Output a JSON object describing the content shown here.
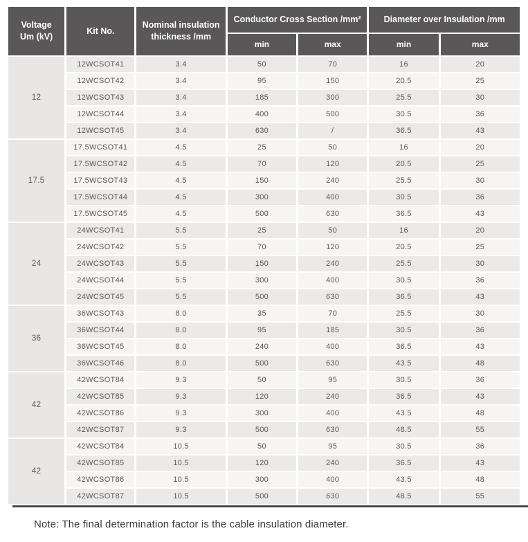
{
  "colors": {
    "header_bg": "#595757",
    "header_text": "#ffffff",
    "row_odd_bg": "#ECEAE9",
    "row_even_bg": "#F6F5F4",
    "voltage_col_bg": "#E9E7E6",
    "body_text": "#595757",
    "bottom_border": "#4B4949",
    "note_text": "#3C3A39"
  },
  "header": {
    "voltage_line1": "Voltage",
    "voltage_line2": "Um (kV)",
    "kit_no": "Kit No.",
    "thickness": "Nominal insulation thickness /mm",
    "conductor_group": "Conductor Cross Section /mm²",
    "diameter_group": "Diameter over Insulation /mm",
    "min": "min",
    "max": "max"
  },
  "table": {
    "groups": [
      {
        "voltage": "12",
        "rows": [
          [
            "12WCSOT41",
            "3.4",
            "50",
            "70",
            "16",
            "20"
          ],
          [
            "12WCSOT42",
            "3.4",
            "95",
            "150",
            "20.5",
            "25"
          ],
          [
            "12WCSOT43",
            "3.4",
            "185",
            "300",
            "25.5",
            "30"
          ],
          [
            "12WCSOT44",
            "3.4",
            "400",
            "500",
            "30.5",
            "36"
          ],
          [
            "12WCSOT45",
            "3.4",
            "630",
            "/",
            "36.5",
            "43"
          ]
        ]
      },
      {
        "voltage": "17.5",
        "rows": [
          [
            "17.5WCSOT41",
            "4.5",
            "25",
            "50",
            "16",
            "20"
          ],
          [
            "17.5WCSOT42",
            "4.5",
            "70",
            "120",
            "20.5",
            "25"
          ],
          [
            "17.5WCSOT43",
            "4.5",
            "150",
            "240",
            "25.5",
            "30"
          ],
          [
            "17.5WCSOT44",
            "4.5",
            "300",
            "400",
            "30.5",
            "36"
          ],
          [
            "17.5WCSOT45",
            "4.5",
            "500",
            "630",
            "36.5",
            "43"
          ]
        ]
      },
      {
        "voltage": "24",
        "rows": [
          [
            "24WCSOT41",
            "5.5",
            "25",
            "50",
            "16",
            "20"
          ],
          [
            "24WCSOT42",
            "5.5",
            "70",
            "120",
            "20.5",
            "25"
          ],
          [
            "24WCSOT43",
            "5.5",
            "150",
            "240",
            "25.5",
            "30"
          ],
          [
            "24WCSOT44",
            "5.5",
            "300",
            "400",
            "30.5",
            "36"
          ],
          [
            "24WCSOT45",
            "5.5",
            "500",
            "630",
            "36.5",
            "43"
          ]
        ]
      },
      {
        "voltage": "36",
        "rows": [
          [
            "36WCSOT43",
            "8.0",
            "35",
            "70",
            "25.5",
            "30"
          ],
          [
            "36WCSOT44",
            "8.0",
            "95",
            "185",
            "30.5",
            "36"
          ],
          [
            "36WCSOT45",
            "8.0",
            "240",
            "400",
            "36.5",
            "43"
          ],
          [
            "36WCSOT46",
            "8.0",
            "500",
            "630",
            "43.5",
            "48"
          ]
        ]
      },
      {
        "voltage": "42",
        "rows": [
          [
            "42WCSOT84",
            "9.3",
            "50",
            "95",
            "30.5",
            "36"
          ],
          [
            "42WCSOT85",
            "9.3",
            "120",
            "240",
            "36.5",
            "43"
          ],
          [
            "42WCSOT86",
            "9.3",
            "300",
            "400",
            "43.5",
            "48"
          ],
          [
            "42WCSOT87",
            "9.3",
            "500",
            "630",
            "48.5",
            "55"
          ]
        ]
      },
      {
        "voltage": "42",
        "rows": [
          [
            "42WCSOT84",
            "10.5",
            "50",
            "95",
            "30.5",
            "36"
          ],
          [
            "42WCSOT85",
            "10.5",
            "120",
            "240",
            "36.5",
            "43"
          ],
          [
            "42WCSOT86",
            "10.5",
            "300",
            "400",
            "43.5",
            "48"
          ],
          [
            "42WCSOT87",
            "10.5",
            "500",
            "630",
            "48.5",
            "55"
          ]
        ]
      }
    ]
  },
  "note": "Note: The final determination factor is the cable insulation diameter."
}
